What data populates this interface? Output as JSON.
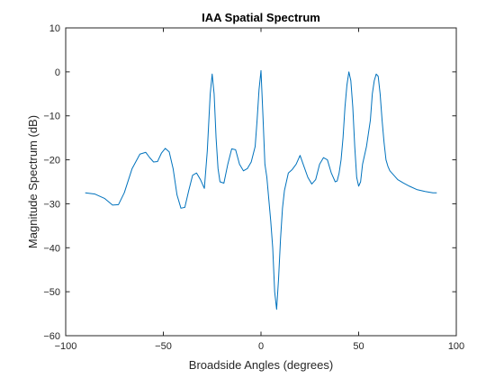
{
  "chart_data": {
    "type": "line",
    "title": "IAA Spatial Spectrum",
    "xlabel": "Broadside Angles (degrees)",
    "ylabel": "Magnitude Spectrum (dB)",
    "xlim": [
      -100,
      100
    ],
    "ylim": [
      -60,
      10
    ],
    "xticks": [
      -100,
      -50,
      0,
      50,
      100
    ],
    "yticks": [
      10,
      0,
      -10,
      -20,
      -30,
      -40,
      -50,
      -60
    ],
    "grid": false,
    "line_color": "#0072BD",
    "axis_color": "#262626",
    "series": [
      {
        "x": [
          -90,
          -85,
          -80,
          -76,
          -73,
          -70,
          -66,
          -62,
          -59,
          -57,
          -55,
          -53,
          -51,
          -49,
          -47,
          -45,
          -43,
          -41,
          -39,
          -37,
          -35,
          -33,
          -31,
          -29,
          -27.5,
          -26,
          -25,
          -24,
          -23,
          -22,
          -21,
          -19,
          -17,
          -15,
          -13,
          -11,
          -9,
          -7,
          -5,
          -3,
          -2,
          -1,
          0,
          1,
          2,
          3,
          4,
          5,
          6,
          7,
          8,
          9,
          10,
          11,
          12,
          14,
          16,
          18,
          20,
          22,
          24,
          26,
          28,
          30,
          32,
          34,
          36,
          38,
          39,
          40,
          41,
          42,
          43,
          44,
          45,
          46,
          47,
          48,
          49,
          50,
          51,
          52,
          54,
          56,
          57,
          58,
          59,
          60,
          61,
          62,
          63,
          64,
          65,
          66,
          68,
          70,
          73,
          76,
          80,
          84,
          88,
          90
        ],
        "y": [
          -27.5,
          -27.8,
          -28.8,
          -30.3,
          -30.2,
          -27.5,
          -22,
          -18.7,
          -18.3,
          -19.5,
          -20.5,
          -20.4,
          -18.5,
          -17.4,
          -18.2,
          -22,
          -28,
          -31,
          -30.8,
          -27,
          -23.5,
          -23,
          -24.5,
          -26.5,
          -18,
          -5,
          -0.5,
          -5,
          -15,
          -22,
          -25,
          -25.3,
          -21,
          -17.5,
          -17.7,
          -21,
          -22.5,
          -22,
          -20.5,
          -17,
          -11,
          -4,
          0.3,
          -10,
          -21,
          -24,
          -29,
          -34,
          -40,
          -50,
          -54,
          -47,
          -38,
          -31,
          -27,
          -23,
          -22.2,
          -21,
          -19,
          -21.5,
          -24,
          -25.5,
          -24.5,
          -21,
          -19.5,
          -20,
          -23,
          -25,
          -24.8,
          -23,
          -20,
          -15,
          -8,
          -3,
          0,
          -2,
          -8,
          -17,
          -24,
          -26,
          -25,
          -21,
          -17,
          -11,
          -5,
          -2,
          -0.5,
          -1,
          -5,
          -11,
          -16,
          -20,
          -21.5,
          -22.5,
          -23.5,
          -24.5,
          -25.3,
          -26,
          -26.8,
          -27.2,
          -27.5,
          -27.5
        ]
      }
    ]
  }
}
